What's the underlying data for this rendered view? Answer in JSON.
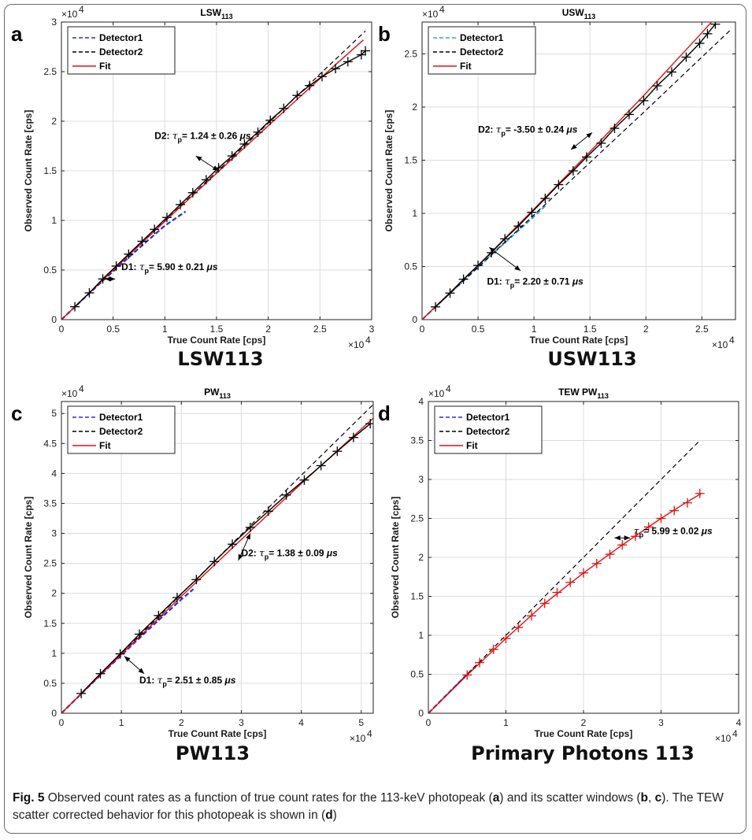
{
  "caption": {
    "fig_label": "Fig. 5",
    "t1": " Observed count rates as a function of true count rates for the 113-keV photopeak (",
    "b1": "a",
    "t2": ") and its scatter windows (",
    "b2": "b",
    "t3": ", ",
    "b3": "c",
    "t4": "). The TEW scatter corrected behavior for this photopeak is shown in (",
    "b4": "d",
    "t5": ")"
  },
  "colors": {
    "detector1": "#2b2bd6",
    "detector1_b": "#3aa0d8",
    "detector2": "#000000",
    "fit": "#e01010",
    "grid": "#dcdcdc"
  },
  "chart_data": [
    {
      "panel": "a",
      "type": "line",
      "title_base": "LSW",
      "title_sub": "113",
      "xlabel": "True Count Rate [cps]",
      "ylabel": "Observed Count Rate [cps]",
      "xlim": [
        0,
        3
      ],
      "ylim": [
        0,
        3
      ],
      "xticks": [
        0,
        0.5,
        1,
        1.5,
        2,
        2.5,
        3
      ],
      "yticks": [
        0,
        0.5,
        1,
        1.5,
        2,
        2.5,
        3
      ],
      "tick_labels_x": [
        "0",
        "0.5",
        "1",
        "1.5",
        "2",
        "2.5",
        "3"
      ],
      "tick_labels_y": [
        "0",
        "0.5",
        "1",
        "1.5",
        "2",
        "2.5",
        "3"
      ],
      "x_multiplier": "×10",
      "y_multiplier": "×10",
      "multiplier_exp": "4",
      "grid": true,
      "legend_position": "top-left",
      "legend": [
        "Detector1",
        "Detector2",
        "Fit"
      ],
      "bottom_label": "LSW113",
      "series": [
        {
          "name": "Detector1",
          "style": "dashed",
          "x": [
            0,
            0.2,
            0.4,
            0.6,
            0.8,
            1.0,
            1.2
          ],
          "y": [
            0,
            0.198,
            0.391,
            0.58,
            0.766,
            0.947,
            1.09
          ]
        },
        {
          "name": "Detector2",
          "style": "dashed",
          "x": [
            0,
            1,
            2,
            2.94
          ],
          "y": [
            0,
            0.995,
            1.98,
            2.91
          ]
        },
        {
          "name": "Fit",
          "style": "solid",
          "x": [
            0,
            0.5,
            1,
            1.5,
            2,
            2.5,
            2.92
          ],
          "y": [
            0,
            0.499,
            0.99,
            1.475,
            1.955,
            2.43,
            2.82
          ]
        },
        {
          "name": "Detector2 markers",
          "style": "markers",
          "x": [
            0.13,
            0.27,
            0.4,
            0.53,
            0.65,
            0.78,
            0.9,
            1.02,
            1.15,
            1.27,
            1.4,
            1.52,
            1.65,
            1.77,
            1.9,
            2.02,
            2.15,
            2.28,
            2.4,
            2.52,
            2.65,
            2.77,
            2.9,
            2.94
          ],
          "y": [
            0.13,
            0.27,
            0.41,
            0.54,
            0.66,
            0.79,
            0.91,
            1.03,
            1.16,
            1.28,
            1.41,
            1.53,
            1.65,
            1.77,
            1.89,
            2.01,
            2.13,
            2.26,
            2.36,
            2.45,
            2.53,
            2.6,
            2.67,
            2.71
          ]
        }
      ],
      "annotations": [
        {
          "prefix": "D2:",
          "value": "= 1.24",
          "err": "± 0.26",
          "unit": "μs",
          "at": [
            0.9,
            1.82
          ],
          "arrow_from": [
            1.3,
            1.65
          ],
          "arrow_to": [
            1.52,
            1.5
          ],
          "arrow_back": [
            1.1,
            1.78
          ]
        },
        {
          "prefix": "D1:",
          "value": "= 5.90",
          "err": "± 0.21",
          "unit": "μs",
          "at": [
            0.58,
            0.5
          ],
          "arrow_from": [
            0.42,
            0.41
          ],
          "arrow_to": [
            0.52,
            0.41
          ],
          "arrow_back": [
            0.55,
            0.41
          ]
        }
      ]
    },
    {
      "panel": "b",
      "type": "line",
      "title_base": "USW",
      "title_sub": "113",
      "xlabel": "True Count Rate [cps]",
      "ylabel": "Observed Count Rate [cps]",
      "xlim": [
        0,
        2.8
      ],
      "ylim": [
        0,
        2.8
      ],
      "xticks": [
        0,
        0.5,
        1,
        1.5,
        2,
        2.5
      ],
      "yticks": [
        0,
        0.5,
        1,
        1.5,
        2,
        2.5
      ],
      "tick_labels_x": [
        "0",
        "0.5",
        "1",
        "1.5",
        "2",
        "2.5"
      ],
      "tick_labels_y": [
        "0",
        "0.5",
        "1",
        "1.5",
        "2",
        "2.5"
      ],
      "x_multiplier": "×10",
      "y_multiplier": "×10",
      "multiplier_exp": "4",
      "grid": true,
      "legend_position": "top-left",
      "legend": [
        "Detector1",
        "Detector2",
        "Fit"
      ],
      "bottom_label": "USW113",
      "series": [
        {
          "name": "Detector1",
          "style": "dashed",
          "x": [
            0,
            0.2,
            0.4,
            0.6,
            0.8,
            1.0,
            1.1
          ],
          "y": [
            0,
            0.2,
            0.396,
            0.59,
            0.78,
            0.97,
            1.07
          ]
        },
        {
          "name": "Detector2",
          "style": "dashed",
          "x": [
            0,
            1,
            2,
            2.75
          ],
          "y": [
            0,
            0.985,
            1.97,
            2.72
          ]
        },
        {
          "name": "Fit",
          "style": "solid",
          "x": [
            0,
            0.5,
            1,
            1.5,
            2,
            2.5,
            2.62
          ],
          "y": [
            0,
            0.51,
            1.04,
            1.58,
            2.13,
            2.7,
            2.84
          ]
        },
        {
          "name": "Detector2 markers",
          "style": "markers",
          "x": [
            0.12,
            0.25,
            0.37,
            0.5,
            0.62,
            0.74,
            0.86,
            0.98,
            1.1,
            1.22,
            1.35,
            1.47,
            1.6,
            1.72,
            1.85,
            1.98,
            2.1,
            2.23,
            2.36,
            2.48,
            2.55,
            2.62
          ],
          "y": [
            0.12,
            0.25,
            0.38,
            0.51,
            0.63,
            0.76,
            0.88,
            1.01,
            1.14,
            1.27,
            1.4,
            1.53,
            1.66,
            1.8,
            1.93,
            2.06,
            2.2,
            2.33,
            2.47,
            2.6,
            2.69,
            2.78
          ]
        }
      ],
      "annotations": [
        {
          "prefix": "D2:",
          "value": "= -3.50",
          "err": "± 0.24",
          "unit": "μs",
          "at": [
            0.5,
            1.76
          ],
          "arrow_from": [
            1.33,
            1.6
          ],
          "arrow_to": [
            1.52,
            1.76
          ],
          "arrow_back": [
            1.5,
            1.58
          ]
        },
        {
          "prefix": "D1:",
          "value": "= 2.20",
          "err": "± 0.71",
          "unit": "μs",
          "at": [
            0.58,
            0.33
          ],
          "arrow_from": [
            0.6,
            0.68
          ],
          "arrow_to": [
            0.88,
            0.46
          ],
          "arrow_back": [
            0.88,
            0.46
          ]
        }
      ]
    },
    {
      "panel": "c",
      "type": "line",
      "title_base": "PW",
      "title_sub": "113",
      "xlabel": "True Count Rate [cps]",
      "ylabel": "Observed Count Rate [cps]",
      "xlim": [
        0,
        5.2
      ],
      "ylim": [
        0,
        5.2
      ],
      "xticks": [
        0,
        1,
        2,
        3,
        4,
        5
      ],
      "yticks": [
        0,
        0.5,
        1,
        1.5,
        2,
        2.5,
        3,
        3.5,
        4,
        4.5,
        5
      ],
      "tick_labels_x": [
        "0",
        "1",
        "2",
        "3",
        "4",
        "5"
      ],
      "tick_labels_y": [
        "0",
        "0.5",
        "1",
        "1.5",
        "2",
        "2.5",
        "3",
        "3.5",
        "4",
        "4.5",
        "5"
      ],
      "x_multiplier": "×10",
      "y_multiplier": "×10",
      "multiplier_exp": "4",
      "grid": true,
      "legend_position": "top-left",
      "legend": [
        "Detector1",
        "Detector2",
        "Fit"
      ],
      "bottom_label": "PW113",
      "series": [
        {
          "name": "Detector1",
          "style": "dashed",
          "x": [
            0,
            0.5,
            1,
            1.5,
            2,
            2.2
          ],
          "y": [
            0,
            0.49,
            0.97,
            1.44,
            1.9,
            2.07
          ]
        },
        {
          "name": "Detector2",
          "style": "dashed",
          "x": [
            0,
            2,
            4,
            5.2
          ],
          "y": [
            0,
            1.99,
            3.97,
            5.15
          ]
        },
        {
          "name": "Fit",
          "style": "solid",
          "x": [
            0,
            1,
            2,
            3,
            4,
            5,
            5.2
          ],
          "y": [
            0,
            0.985,
            1.95,
            2.9,
            3.83,
            4.74,
            4.92
          ]
        },
        {
          "name": "Detector2 markers",
          "style": "markers",
          "x": [
            0.33,
            0.65,
            0.98,
            1.3,
            1.62,
            1.93,
            2.25,
            2.55,
            2.85,
            3.15,
            3.45,
            3.75,
            4.05,
            4.33,
            4.6,
            4.87,
            5.15
          ],
          "y": [
            0.33,
            0.66,
            0.99,
            1.32,
            1.63,
            1.93,
            2.23,
            2.53,
            2.82,
            3.1,
            3.37,
            3.64,
            3.89,
            4.13,
            4.37,
            4.6,
            4.83
          ]
        }
      ],
      "annotations": [
        {
          "prefix": "D2:",
          "value": "= 1.38",
          "err": "± 0.09",
          "unit": "μs",
          "at": [
            3,
            2.62
          ],
          "arrow_from": [
            2.95,
            2.55
          ],
          "arrow_to": [
            3.15,
            3.0
          ],
          "arrow_back": [
            3.3,
            2.86
          ]
        },
        {
          "prefix": "D1:",
          "value": "= 2.51",
          "err": "± 0.85",
          "unit": "μs",
          "at": [
            1.3,
            0.5
          ],
          "arrow_from": [
            1.05,
            0.95
          ],
          "arrow_to": [
            1.38,
            0.66
          ],
          "arrow_back": [
            1.38,
            0.66
          ]
        }
      ]
    },
    {
      "panel": "d",
      "type": "line",
      "title_base": "TEW PW",
      "title_sub": "113",
      "xlabel": "True Count Rate [cps]",
      "ylabel": "Observed Count Rate [cps]",
      "xlim": [
        0,
        4
      ],
      "ylim": [
        0,
        4
      ],
      "xticks": [
        0,
        1,
        2,
        3,
        4
      ],
      "yticks": [
        0,
        0.5,
        1,
        1.5,
        2,
        2.5,
        3,
        3.5,
        4
      ],
      "tick_labels_x": [
        "0",
        "1",
        "2",
        "3",
        "4"
      ],
      "tick_labels_y": [
        "0",
        "0.5",
        "1",
        "1.5",
        "2",
        "2.5",
        "3",
        "3.5",
        "4"
      ],
      "x_multiplier": "×10",
      "y_multiplier": "×10",
      "multiplier_exp": "4",
      "grid": true,
      "legend_position": "top-left",
      "legend": [
        "Detector1",
        "Detector2",
        "Fit"
      ],
      "bottom_label": "Primary Photons  113",
      "series": [
        {
          "name": "Detector1",
          "style": "dashed",
          "x": [
            0,
            0.2,
            0.4,
            0.6,
            0.7
          ],
          "y": [
            0,
            0.2,
            0.4,
            0.595,
            0.69
          ]
        },
        {
          "name": "Detector2",
          "style": "dashed",
          "x": [
            0,
            1,
            2,
            3,
            3.5
          ],
          "y": [
            0,
            1,
            2,
            3,
            3.5
          ]
        },
        {
          "name": "Fit",
          "style": "solid",
          "x": [
            0,
            0.5,
            1,
            1.5,
            2,
            2.5,
            3,
            3.3,
            3.52
          ],
          "y": [
            0,
            0.49,
            0.96,
            1.41,
            1.8,
            2.16,
            2.5,
            2.69,
            2.82
          ]
        },
        {
          "name": "Fit markers",
          "style": "markers",
          "x": [
            0.5,
            0.66,
            0.84,
            1.0,
            1.16,
            1.33,
            1.5,
            1.66,
            1.83,
            2.0,
            2.17,
            2.34,
            2.5,
            2.67,
            2.84,
            3.0,
            3.17,
            3.34,
            3.5
          ],
          "y": [
            0.49,
            0.65,
            0.82,
            0.96,
            1.1,
            1.25,
            1.41,
            1.55,
            1.68,
            1.8,
            1.92,
            2.04,
            2.16,
            2.27,
            2.39,
            2.5,
            2.6,
            2.7,
            2.82
          ]
        }
      ],
      "annotations": [
        {
          "prefix": "",
          "value": "= 5.99",
          "err": "± 0.02",
          "unit": "μs",
          "at": [
            2.65,
            2.3
          ],
          "arrow_from": [
            2.6,
            2.25
          ],
          "arrow_to": [
            2.4,
            2.25
          ],
          "arrow_back": [
            2.4,
            2.25
          ]
        }
      ]
    }
  ]
}
